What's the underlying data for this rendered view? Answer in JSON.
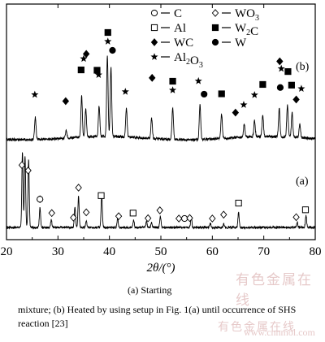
{
  "chart_data": {
    "type": "line",
    "xlabel": "2θ/(°)",
    "ylabel": "",
    "xlim": [
      20,
      80
    ],
    "xticks": [
      20,
      30,
      40,
      50,
      60,
      70,
      80
    ],
    "grid": false,
    "legend_position": "top",
    "legend": [
      {
        "marker": "circle-open",
        "label": "C"
      },
      {
        "marker": "diamond-open",
        "label": "WO3"
      },
      {
        "marker": "square-open",
        "label": "Al"
      },
      {
        "marker": "square-filled",
        "label": "W2C"
      },
      {
        "marker": "diamond-filled",
        "label": "WC"
      },
      {
        "marker": "circle-filled",
        "label": "W"
      },
      {
        "marker": "star",
        "label": "Al2O3"
      }
    ],
    "series": [
      {
        "panel_label": "(a)",
        "peaks": [
          {
            "x": 23.1,
            "h": 0.98
          },
          {
            "x": 23.6,
            "h": 0.93
          },
          {
            "x": 24.3,
            "h": 0.88
          },
          {
            "x": 26.5,
            "h": 0.25
          },
          {
            "x": 28.7,
            "h": 0.1
          },
          {
            "x": 33.3,
            "h": 0.27
          },
          {
            "x": 34.0,
            "h": 0.4
          },
          {
            "x": 35.5,
            "h": 0.08
          },
          {
            "x": 38.5,
            "h": 0.42
          },
          {
            "x": 41.6,
            "h": 0.12
          },
          {
            "x": 44.7,
            "h": 0.1
          },
          {
            "x": 47.2,
            "h": 0.08
          },
          {
            "x": 48.2,
            "h": 0.06
          },
          {
            "x": 49.9,
            "h": 0.15
          },
          {
            "x": 55.9,
            "h": 0.14
          },
          {
            "x": 59.6,
            "h": 0.05
          },
          {
            "x": 62.2,
            "h": 0.05
          },
          {
            "x": 65.1,
            "h": 0.2
          },
          {
            "x": 76.5,
            "h": 0.07
          },
          {
            "x": 78.2,
            "h": 0.16
          }
        ],
        "markers": [
          {
            "x": 23.0,
            "type": "diamond-open"
          },
          {
            "x": 24.2,
            "type": "diamond-open"
          },
          {
            "x": 26.5,
            "type": "diamond-open"
          },
          {
            "x": 26.5,
            "type": "circle-open"
          },
          {
            "x": 28.8,
            "type": "diamond-open"
          },
          {
            "x": 33.0,
            "type": "diamond-open"
          },
          {
            "x": 34.0,
            "type": "diamond-open"
          },
          {
            "x": 35.5,
            "type": "diamond-open"
          },
          {
            "x": 38.4,
            "type": "square-open"
          },
          {
            "x": 41.8,
            "type": "diamond-open"
          },
          {
            "x": 44.6,
            "type": "square-open"
          },
          {
            "x": 47.5,
            "type": "diamond-open"
          },
          {
            "x": 49.8,
            "type": "diamond-open"
          },
          {
            "x": 53.5,
            "type": "diamond-open"
          },
          {
            "x": 54.6,
            "type": "circle-open"
          },
          {
            "x": 55.6,
            "type": "diamond-open"
          },
          {
            "x": 60.0,
            "type": "diamond-open"
          },
          {
            "x": 62.2,
            "type": "diamond-open"
          },
          {
            "x": 65.1,
            "type": "square-open"
          },
          {
            "x": 76.3,
            "type": "diamond-open"
          },
          {
            "x": 78.1,
            "type": "square-open"
          }
        ]
      },
      {
        "panel_label": "(b)",
        "peaks": [
          {
            "x": 25.6,
            "h": 0.28
          },
          {
            "x": 31.6,
            "h": 0.1
          },
          {
            "x": 34.6,
            "h": 0.5
          },
          {
            "x": 35.4,
            "h": 0.35
          },
          {
            "x": 38.0,
            "h": 0.38
          },
          {
            "x": 39.6,
            "h": 0.98
          },
          {
            "x": 40.3,
            "h": 0.85
          },
          {
            "x": 43.3,
            "h": 0.36
          },
          {
            "x": 48.2,
            "h": 0.25
          },
          {
            "x": 52.3,
            "h": 0.4
          },
          {
            "x": 57.6,
            "h": 0.43
          },
          {
            "x": 61.8,
            "h": 0.3
          },
          {
            "x": 66.2,
            "h": 0.16
          },
          {
            "x": 68.2,
            "h": 0.2
          },
          {
            "x": 69.8,
            "h": 0.27
          },
          {
            "x": 73.0,
            "h": 0.35
          },
          {
            "x": 74.6,
            "h": 0.4
          },
          {
            "x": 75.5,
            "h": 0.3
          },
          {
            "x": 77.0,
            "h": 0.16
          }
        ],
        "markers": [
          {
            "x": 25.5,
            "level": 1,
            "type": "star"
          },
          {
            "x": 31.5,
            "level": 1,
            "type": "diamond-filled"
          },
          {
            "x": 34.5,
            "level": 2,
            "type": "square-filled"
          },
          {
            "x": 35.0,
            "level": 3,
            "type": "star"
          },
          {
            "x": 35.5,
            "level": 4,
            "type": "diamond-filled"
          },
          {
            "x": 37.6,
            "level": 3,
            "type": "square-filled"
          },
          {
            "x": 37.9,
            "level": 2,
            "type": "star"
          },
          {
            "x": 39.7,
            "level": 5,
            "type": "square-filled"
          },
          {
            "x": 39.7,
            "level": 4,
            "type": "star"
          },
          {
            "x": 40.6,
            "level": 3,
            "type": "circle-filled"
          },
          {
            "x": 43.1,
            "level": 1,
            "type": "star"
          },
          {
            "x": 48.3,
            "level": 3,
            "type": "diamond-filled"
          },
          {
            "x": 52.3,
            "level": 2,
            "type": "square-filled"
          },
          {
            "x": 52.3,
            "level": 1,
            "type": "star"
          },
          {
            "x": 57.3,
            "level": 2,
            "type": "star"
          },
          {
            "x": 58.4,
            "level": 1,
            "type": "circle-filled"
          },
          {
            "x": 61.8,
            "level": 1,
            "type": "square-filled"
          },
          {
            "x": 64.5,
            "level": 0,
            "type": "diamond-filled"
          },
          {
            "x": 66.1,
            "level": 0.3,
            "type": "star"
          },
          {
            "x": 68.2,
            "level": 1,
            "type": "star"
          },
          {
            "x": 69.8,
            "level": 2,
            "type": "square-filled"
          },
          {
            "x": 73.1,
            "level": 4,
            "type": "diamond-filled"
          },
          {
            "x": 73.4,
            "level": 3,
            "type": "star"
          },
          {
            "x": 73.2,
            "level": 1,
            "type": "circle-filled"
          },
          {
            "x": 74.7,
            "level": 2,
            "type": "square-filled"
          },
          {
            "x": 75.4,
            "level": 0.7,
            "type": "square-filled"
          },
          {
            "x": 76.3,
            "level": 0,
            "type": "diamond-filled"
          },
          {
            "x": 77.3,
            "level": 2,
            "type": "star"
          }
        ]
      }
    ]
  },
  "caption": {
    "line1": "(a)   Starting",
    "line2": "mixture; (b) Heated by using setup in Fig. 1(a) until occurrence of SHS reaction [23]"
  },
  "watermark": {
    "text1": "有色金属在线",
    "text2": "www.cnnmol.com",
    "text3": "有色金属在线"
  }
}
